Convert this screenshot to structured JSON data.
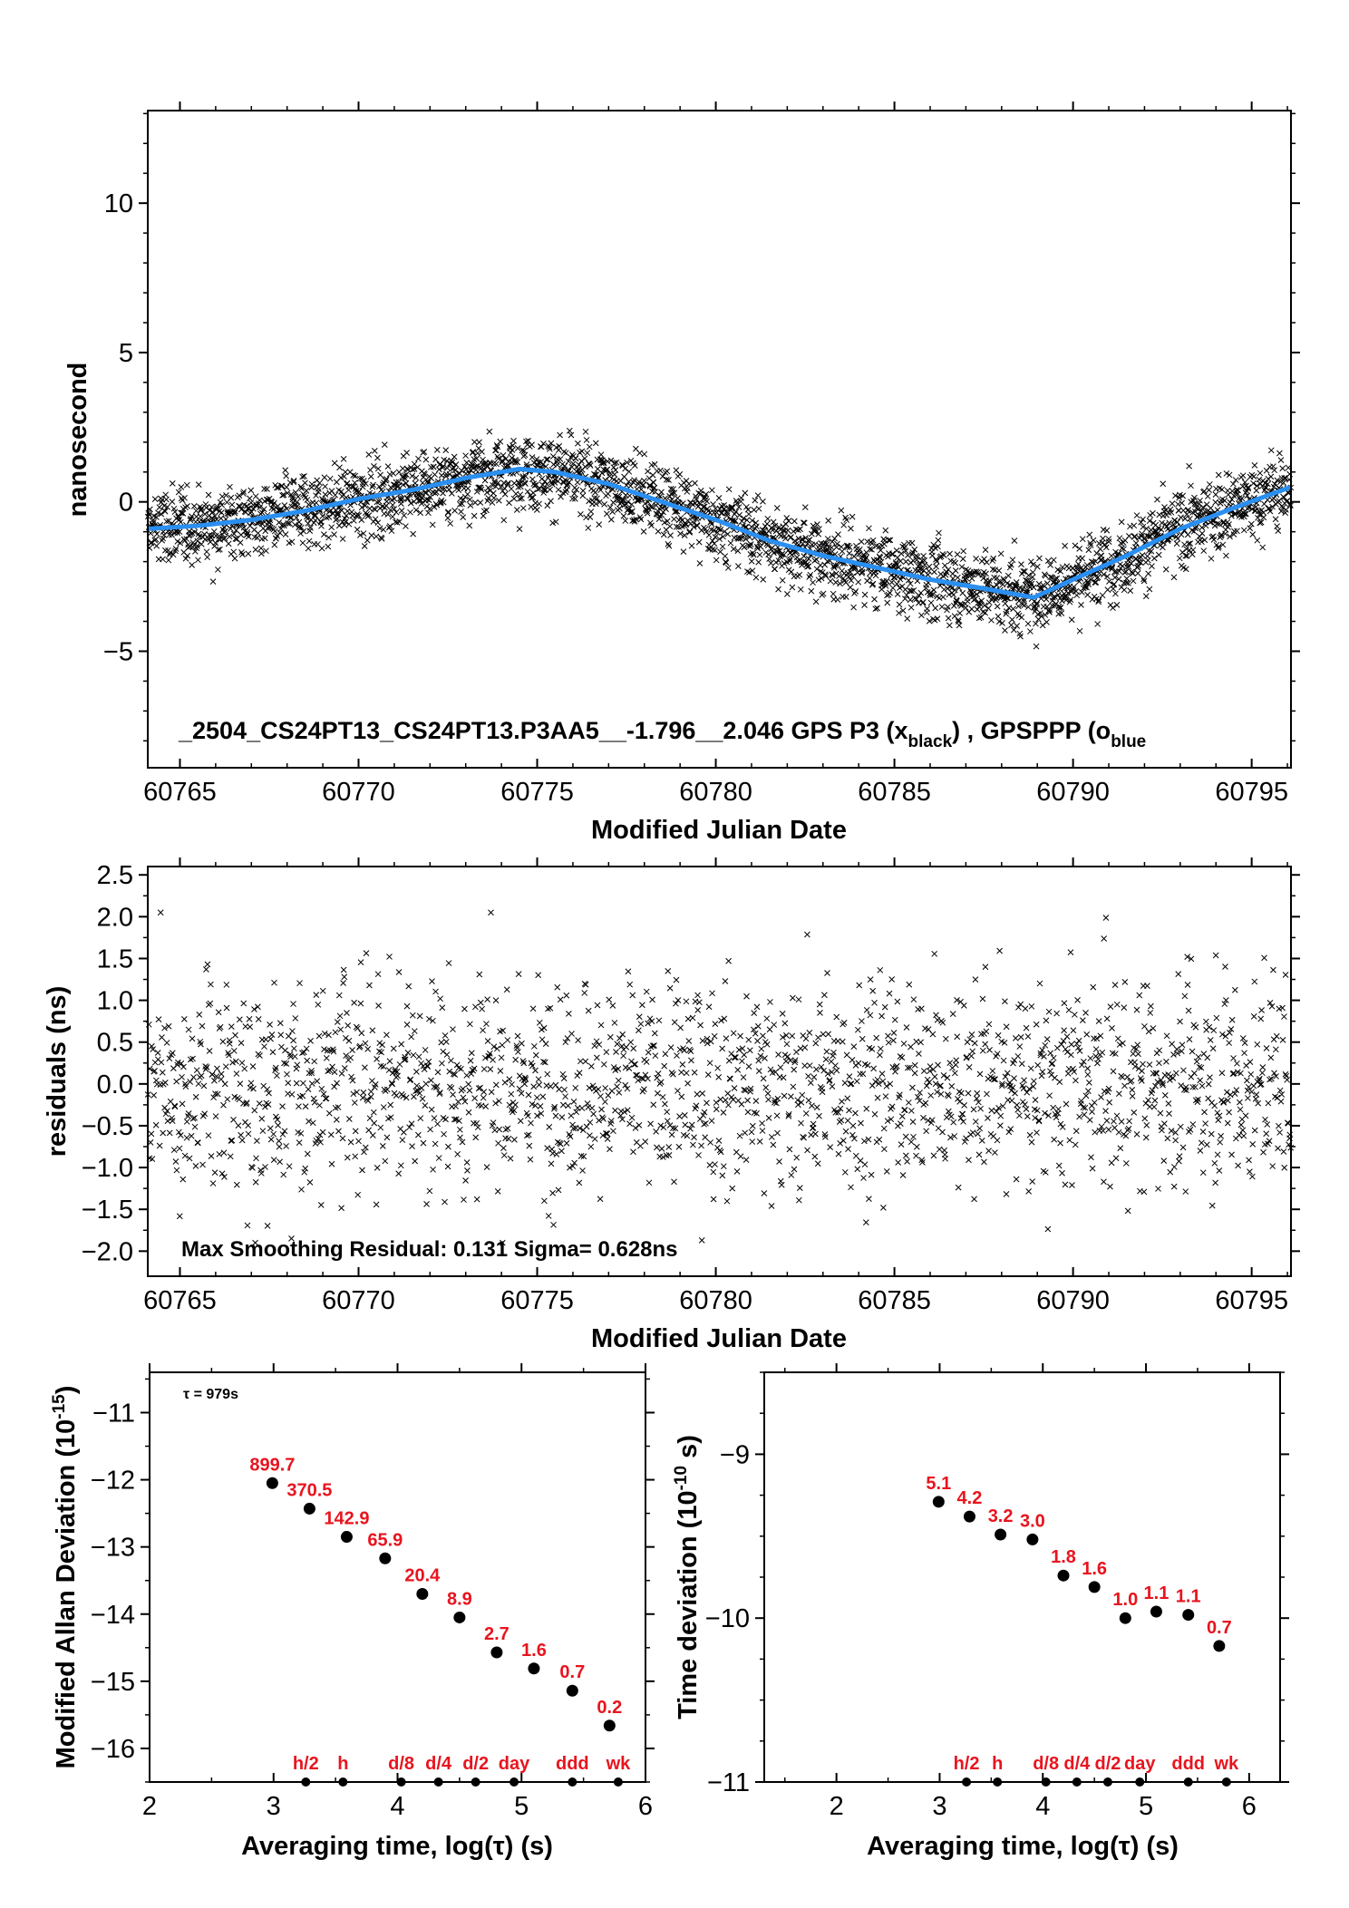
{
  "colors": {
    "smooth_line": "#2a8ff0",
    "label_red": "#e8141e",
    "marker": "#000000"
  },
  "chart_data": [
    {
      "type": "scatter",
      "id": "phase",
      "xlabel": "Modified Julian Date",
      "ylabel": "nanosecond",
      "xlim": [
        60764.1,
        60796.1
      ],
      "ylim": [
        -8.9,
        13.1
      ],
      "xticks": [
        60765,
        60770,
        60775,
        60780,
        60785,
        60790,
        60795
      ],
      "yticks": [
        -5,
        0,
        5,
        10
      ],
      "ytick_labels": [
        "−5",
        "0",
        "5",
        "10"
      ],
      "caption": "_2504_CS24PT13_CS24PT13.P3AA5__-1.796__2.046     GPS P3 (x",
      "caption_sub1": "black",
      "caption_mid": ") ,  GPSPPP (o",
      "caption_sub2": "blue",
      "series": [
        {
          "name": "GPS P3",
          "marker": "x",
          "color": "#000000",
          "points": 2880,
          "noise_sigma_ns": 0.63
        },
        {
          "name": "GPSPPP",
          "marker": "line",
          "color": "#2a8ff0",
          "x": [
            60764.1,
            60765.5,
            60767.0,
            60768.5,
            60770.0,
            60771.5,
            60773.0,
            60774.5,
            60775.5,
            60777.0,
            60778.5,
            60780.0,
            60781.5,
            60783.0,
            60784.5,
            60786.0,
            60787.5,
            60788.9,
            60790.0,
            60791.5,
            60793.0,
            60794.5,
            60796.1
          ],
          "y": [
            -0.9,
            -0.8,
            -0.6,
            -0.3,
            0.1,
            0.4,
            0.8,
            1.1,
            1.0,
            0.6,
            0.0,
            -0.6,
            -1.3,
            -1.8,
            -2.2,
            -2.6,
            -2.9,
            -3.2,
            -2.6,
            -1.8,
            -0.9,
            -0.2,
            0.5
          ]
        }
      ]
    },
    {
      "type": "scatter",
      "id": "residuals",
      "xlabel": "Modified Julian Date",
      "ylabel": "residuals (ns)",
      "xlim": [
        60764.1,
        60796.1
      ],
      "ylim": [
        -2.3,
        2.6
      ],
      "xticks": [
        60765,
        60770,
        60775,
        60780,
        60785,
        60790,
        60795
      ],
      "yticks": [
        -2.0,
        -1.5,
        -1.0,
        -0.5,
        0.0,
        0.5,
        1.0,
        1.5,
        2.0,
        2.5
      ],
      "ytick_labels": [
        "−2.0",
        "−1.5",
        "−1.0",
        "−0.5",
        "0.0",
        "0.5",
        "1.0",
        "1.5",
        "2.0",
        "2.5"
      ],
      "annotation": "Max Smoothing Residual: 0.131  Sigma= 0.628ns",
      "series": [
        {
          "name": "residuals",
          "marker": "x",
          "color": "#000000",
          "points": 1900
        }
      ]
    },
    {
      "type": "scatter",
      "id": "mdev",
      "xlabel": "Averaging time, log(τ) (s)",
      "ylabel": "Modified Allan Deviation (10",
      "ylabel_sup": "-15",
      "ylabel_end": ")",
      "tau_note": "τ = 979s",
      "xlim": [
        2,
        6
      ],
      "ylim": [
        -16.5,
        -10.4
      ],
      "xticks": [
        2,
        3,
        4,
        5,
        6
      ],
      "yticks": [
        -16,
        -15,
        -14,
        -13,
        -12,
        -11
      ],
      "ytick_labels": [
        "−16",
        "−15",
        "−14",
        "−13",
        "−12",
        "−11"
      ],
      "x": [
        2.99,
        3.29,
        3.59,
        3.9,
        4.2,
        4.5,
        4.8,
        5.1,
        5.41,
        5.71
      ],
      "y": [
        -12.05,
        -12.43,
        -12.85,
        -13.17,
        -13.7,
        -14.05,
        -14.57,
        -14.81,
        -15.14,
        -15.66
      ],
      "point_labels": [
        "899.7",
        "370.5",
        "142.9",
        "65.9",
        "20.4",
        "8.9",
        "2.7",
        "1.6",
        "0.7",
        "0.2"
      ],
      "markers": {
        "x": [
          3.26,
          3.56,
          4.03,
          4.33,
          4.63,
          4.94,
          5.41,
          5.78
        ],
        "labels": [
          "h/2",
          "h",
          "d/8",
          "d/4",
          "d/2",
          "day",
          "ddd",
          "wk"
        ]
      }
    },
    {
      "type": "scatter",
      "id": "tdev",
      "xlabel": "Averaging time, log(τ) (s)",
      "ylabel": "Time deviation (10",
      "ylabel_sup": "-10",
      "ylabel_end": " s)",
      "xlim": [
        1.3,
        6.3
      ],
      "ylim": [
        -11,
        -8.5
      ],
      "xticks": [
        2,
        3,
        4,
        5,
        6
      ],
      "yticks": [
        -11,
        -10,
        -9
      ],
      "ytick_labels": [
        "−11",
        "−10",
        "−9"
      ],
      "x": [
        2.99,
        3.29,
        3.59,
        3.9,
        4.2,
        4.5,
        4.8,
        5.1,
        5.41,
        5.71
      ],
      "y": [
        -9.29,
        -9.38,
        -9.49,
        -9.52,
        -9.74,
        -9.81,
        -10.0,
        -9.96,
        -9.98,
        -10.17
      ],
      "point_labels": [
        "5.1",
        "4.2",
        "3.2",
        "3.0",
        "1.8",
        "1.6",
        "1.0",
        "1.1",
        "1.1",
        "0.7"
      ],
      "markers": {
        "x": [
          3.26,
          3.56,
          4.03,
          4.33,
          4.63,
          4.94,
          5.41,
          5.78
        ],
        "labels": [
          "h/2",
          "h",
          "d/8",
          "d/4",
          "d/2",
          "day",
          "ddd",
          "wk"
        ]
      }
    }
  ]
}
